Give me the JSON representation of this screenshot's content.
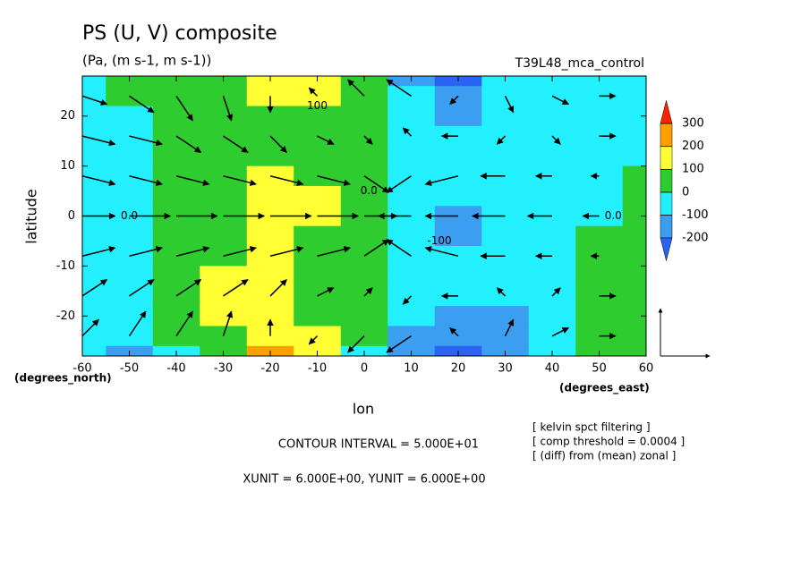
{
  "chart_data": {
    "type": "contour",
    "title": "PS (U, V) composite",
    "subtitle": "(Pa, (m s-1, m s-1))",
    "dataset": "T39L48_mca_control",
    "xlabel": "lon",
    "ylabel": "latitude",
    "xunits": "(degrees_east)",
    "yunits": "(degrees_north)",
    "contour_interval": "CONTOUR INTERVAL = 5.000E+01",
    "vector_units": "XUNIT = 6.000E+00, YUNIT = 6.000E+00",
    "notes": [
      "[ kelvin spct filtering ]",
      "[ comp threshold = 0.0004 ]",
      "[ (diff) from (mean) zonal ]"
    ],
    "xlim": [
      -60,
      60
    ],
    "ylim": [
      -28,
      28
    ],
    "xticks": [
      -60,
      -50,
      -40,
      -30,
      -20,
      -10,
      0,
      10,
      20,
      30,
      40,
      50,
      60
    ],
    "yticks": [
      -20,
      -10,
      0,
      10,
      20
    ],
    "levels": [
      -200,
      -100,
      0,
      100,
      200,
      300
    ],
    "colors": [
      "#2a62f2",
      "#3b9ef0",
      "#22f0ff",
      "#2ecc2e",
      "#ffff33",
      "#ffa000",
      "#ff2200"
    ],
    "lon": [
      -60,
      -50,
      -40,
      -30,
      -20,
      -10,
      0,
      10,
      20,
      30,
      40,
      50,
      60
    ],
    "lat": [
      28,
      24,
      20,
      16,
      12,
      8,
      4,
      0,
      -4,
      -8,
      -12,
      -16,
      -20,
      -24,
      -28
    ],
    "z": [
      [
        -20,
        30,
        60,
        70,
        160,
        120,
        40,
        -110,
        -220,
        -100,
        -40,
        -40,
        -30
      ],
      [
        -30,
        10,
        50,
        60,
        140,
        100,
        40,
        -90,
        -170,
        -80,
        -40,
        -40,
        -30
      ],
      [
        -40,
        -10,
        40,
        50,
        90,
        60,
        30,
        -70,
        -120,
        -70,
        -40,
        -40,
        -30
      ],
      [
        -40,
        -30,
        20,
        40,
        60,
        50,
        20,
        -50,
        -80,
        -60,
        -40,
        -40,
        -30
      ],
      [
        -50,
        -40,
        10,
        50,
        60,
        40,
        20,
        -40,
        -60,
        -50,
        -40,
        -40,
        -20
      ],
      [
        -50,
        -40,
        20,
        60,
        110,
        70,
        30,
        -40,
        -70,
        -50,
        -40,
        -30,
        10
      ],
      [
        -50,
        -40,
        30,
        70,
        140,
        110,
        30,
        -50,
        -100,
        -60,
        -40,
        -20,
        20
      ],
      [
        -50,
        -40,
        30,
        80,
        150,
        120,
        20,
        -60,
        -120,
        -70,
        -40,
        -10,
        30
      ],
      [
        -50,
        -40,
        30,
        80,
        150,
        90,
        20,
        -50,
        -110,
        -60,
        -40,
        10,
        30
      ],
      [
        -50,
        -30,
        30,
        90,
        140,
        60,
        20,
        -40,
        -70,
        -50,
        -30,
        20,
        40
      ],
      [
        -50,
        -30,
        30,
        100,
        130,
        60,
        20,
        -40,
        -60,
        -50,
        -20,
        20,
        40
      ],
      [
        -40,
        -20,
        40,
        110,
        140,
        60,
        10,
        -60,
        -90,
        -70,
        -20,
        20,
        30
      ],
      [
        -40,
        -40,
        40,
        110,
        150,
        70,
        0,
        -100,
        -150,
        -110,
        -30,
        20,
        30
      ],
      [
        -50,
        -90,
        20,
        90,
        190,
        100,
        0,
        -150,
        -200,
        -140,
        -40,
        30,
        30
      ],
      [
        -60,
        -130,
        -20,
        70,
        220,
        120,
        -10,
        -190,
        -250,
        -170,
        -50,
        30,
        30
      ]
    ],
    "vectors": {
      "lon": [
        -60,
        -50,
        -40,
        -30,
        -20,
        -10,
        0,
        10,
        20,
        30,
        40,
        50,
        60
      ],
      "lat": [
        24,
        16,
        8,
        0,
        -8,
        -16,
        -24
      ],
      "u": [
        [
          3,
          3,
          2,
          1,
          0,
          -1,
          -2,
          -3,
          -1,
          1,
          2,
          2,
          2
        ],
        [
          4,
          4,
          3,
          3,
          2,
          2,
          1,
          -1,
          -2,
          -1,
          1,
          2,
          2
        ],
        [
          4,
          4,
          4,
          4,
          4,
          4,
          3,
          -3,
          -4,
          -3,
          -2,
          -1,
          1
        ],
        [
          4,
          5,
          5,
          5,
          5,
          5,
          4,
          -4,
          -4,
          -4,
          -3,
          -2,
          0
        ],
        [
          4,
          4,
          4,
          4,
          4,
          4,
          3,
          -3,
          -4,
          -3,
          -2,
          -1,
          1
        ],
        [
          3,
          3,
          3,
          3,
          2,
          2,
          1,
          -1,
          -2,
          -1,
          1,
          2,
          2
        ],
        [
          2,
          2,
          2,
          1,
          0,
          -1,
          -2,
          -3,
          -1,
          1,
          2,
          2,
          2
        ]
      ],
      "v": [
        [
          -1,
          -2,
          -3,
          -3,
          -2,
          1,
          2,
          2,
          -1,
          -2,
          -1,
          0,
          1
        ],
        [
          -1,
          -1,
          -2,
          -2,
          -2,
          -1,
          -1,
          1,
          0,
          -1,
          -1,
          0,
          0
        ],
        [
          -1,
          -1,
          -1,
          -1,
          -1,
          -1,
          -2,
          -2,
          -1,
          0,
          0,
          0,
          0
        ],
        [
          0,
          0,
          0,
          0,
          0,
          0,
          0,
          0,
          0,
          0,
          0,
          0,
          0
        ],
        [
          1,
          1,
          1,
          1,
          1,
          1,
          2,
          2,
          1,
          0,
          0,
          0,
          0
        ],
        [
          2,
          2,
          2,
          2,
          2,
          1,
          1,
          -1,
          0,
          1,
          1,
          0,
          0
        ],
        [
          2,
          3,
          3,
          3,
          2,
          -1,
          -2,
          -2,
          1,
          2,
          1,
          0,
          -1
        ]
      ],
      "unit": 6
    },
    "contour_labels": [
      {
        "value": 100,
        "lon": -10,
        "lat": 22
      },
      {
        "value": -100,
        "lon": 16,
        "lat": -5
      },
      {
        "value": 0,
        "label": "0.0",
        "lon": -50,
        "lat": 0
      },
      {
        "value": 0,
        "label": "0.0",
        "lon": 53,
        "lat": 0
      },
      {
        "value": 0,
        "label": "0.0",
        "lon": 1,
        "lat": 5
      }
    ]
  }
}
